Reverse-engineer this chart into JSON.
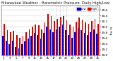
{
  "title": "Milwaukee Weather - Barometric Pressure",
  "subtitle": "Daily High/Low",
  "legend_high": "High",
  "legend_low": "Low",
  "high_color": "#dd0000",
  "low_color": "#0000cc",
  "background_color": "#ffffff",
  "grid_color": "#cccccc",
  "ylabel": "In Hg",
  "ylim": [
    29.0,
    30.75
  ],
  "yticks": [
    29.0,
    29.2,
    29.4,
    29.6,
    29.8,
    30.0,
    30.2,
    30.4,
    30.6
  ],
  "num_days": 31,
  "x_labels": [
    "1",
    "",
    "3",
    "",
    "5",
    "",
    "7",
    "",
    "9",
    "",
    "11",
    "",
    "13",
    "",
    "15",
    "",
    "17",
    "",
    "19",
    "",
    "21",
    "",
    "23",
    "",
    "25",
    "",
    "27",
    "",
    "29",
    "",
    "31"
  ],
  "highs": [
    30.12,
    29.88,
    29.8,
    29.85,
    29.72,
    29.62,
    29.68,
    29.82,
    29.9,
    30.02,
    30.08,
    30.05,
    29.92,
    30.15,
    30.45,
    30.38,
    30.2,
    30.28,
    30.36,
    30.38,
    30.22,
    30.08,
    30.02,
    30.18,
    30.32,
    30.25,
    30.15,
    30.1,
    30.2,
    30.28,
    30.12
  ],
  "lows": [
    29.68,
    29.5,
    29.38,
    29.52,
    29.28,
    29.25,
    29.38,
    29.48,
    29.58,
    29.68,
    29.78,
    29.7,
    29.58,
    29.78,
    30.02,
    29.92,
    29.82,
    29.92,
    30.02,
    30.08,
    29.88,
    29.7,
    29.62,
    29.8,
    29.95,
    29.88,
    29.78,
    29.7,
    29.82,
    29.92,
    29.75
  ],
  "dotted_days": [
    17,
    18,
    19,
    20
  ],
  "title_fontsize": 3.8,
  "tick_fontsize": 3.0,
  "axis_label_fontsize": 3.2,
  "bar_width": 0.38
}
